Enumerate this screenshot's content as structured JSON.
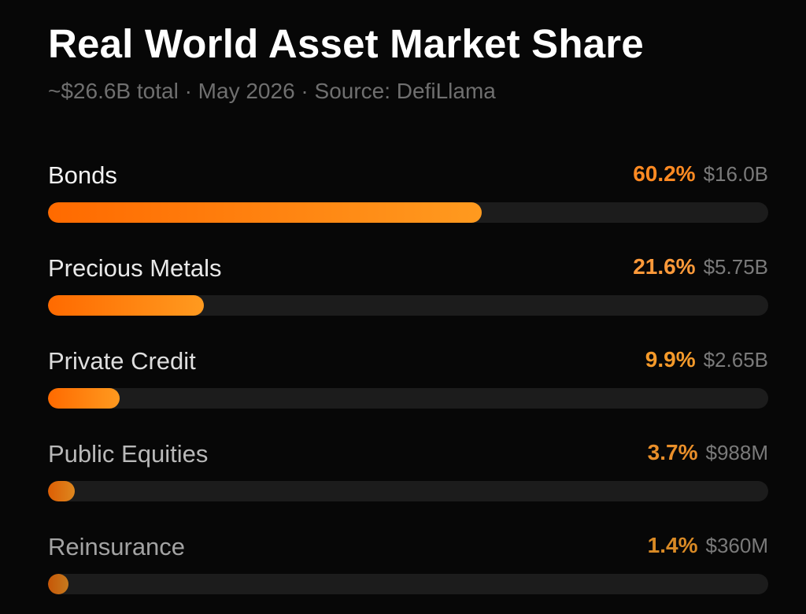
{
  "header": {
    "title": "Real World Asset Market Share",
    "subtitle": "~$26.6B total · May 2026 · Source: DefiLlama"
  },
  "colors": {
    "accent": "#ff8c1a",
    "accent_bright": "#ff9a1f",
    "accent_dark": "#ff6a00",
    "track": "#1c1c1c",
    "muted_text": "#7a7a7a"
  },
  "chart_data": {
    "type": "bar",
    "orientation": "horizontal",
    "title": "Real World Asset Market Share",
    "subtitle": "~$26.6B total · May 2026 · Source: DefiLlama",
    "xlim": [
      0,
      100
    ],
    "grid": false,
    "categories": [
      "Bonds",
      "Precious Metals",
      "Private Credit",
      "Public Equities",
      "Reinsurance"
    ],
    "values": [
      60.2,
      21.6,
      9.9,
      3.7,
      1.4
    ],
    "percent_labels": [
      "60.2%",
      "21.6%",
      "9.9%",
      "3.7%",
      "1.4%"
    ],
    "amount_labels": [
      "$16.0B",
      "$5.75B",
      "$2.65B",
      "$988M",
      "$360M"
    ]
  }
}
